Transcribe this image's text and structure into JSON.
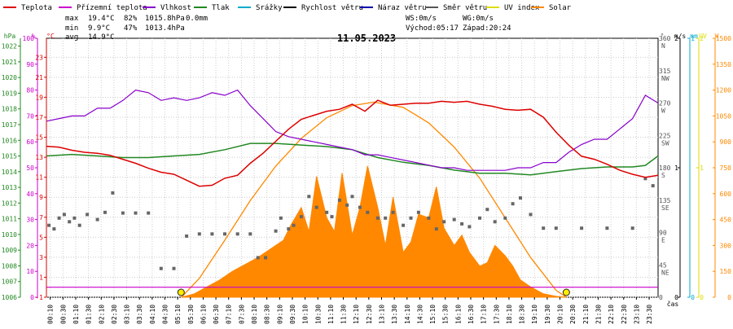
{
  "chart_data": {
    "type": "line",
    "title": "11.05.2023",
    "legend": [
      {
        "name": "Teplota",
        "color": "#dd0000"
      },
      {
        "name": "Přízemní teplota",
        "color": "#cc00cc"
      },
      {
        "name": "Vlhkost",
        "color": "#8800cc"
      },
      {
        "name": "Tlak",
        "color": "#228822"
      },
      {
        "name": "Srážky",
        "color": "#00aacc"
      },
      {
        "name": "Rychlost větru",
        "color": "#000000"
      },
      {
        "name": "Náraz větru",
        "color": "#0000aa"
      },
      {
        "name": "Směr větru",
        "color": "#555555"
      },
      {
        "name": "UV index",
        "color": "#dddd00"
      },
      {
        "name": "Solar",
        "color": "#ff8800"
      }
    ],
    "stats": {
      "max": {
        "label": "max",
        "temp": "19.4°C",
        "hum": "82%",
        "press": "1015.8hPa",
        "rain": "0.0mm"
      },
      "min": {
        "label": "min",
        "temp": "9.9°C",
        "hum": "47%",
        "press": "1013.4hPa"
      },
      "avg": {
        "label": "avg",
        "temp": "14.9°C"
      }
    },
    "info": {
      "ws": "WS:0m/s",
      "wg": "WG:0m/s",
      "sunrise": "Východ:05:17",
      "sunset": "Západ:20:24"
    },
    "x_unit": "čas",
    "x_ticks": [
      "00:10",
      "00:30",
      "01:10",
      "01:30",
      "02:10",
      "02:30",
      "03:10",
      "03:30",
      "04:10",
      "04:30",
      "05:10",
      "05:30",
      "06:10",
      "06:30",
      "07:10",
      "07:30",
      "08:10",
      "08:30",
      "09:10",
      "09:30",
      "10:10",
      "10:30",
      "11:10",
      "11:30",
      "12:10",
      "12:30",
      "13:10",
      "13:30",
      "14:10",
      "14:30",
      "15:10",
      "15:30",
      "16:10",
      "16:30",
      "17:10",
      "17:30",
      "18:10",
      "18:30",
      "19:10",
      "19:30",
      "20:10",
      "20:30",
      "21:10",
      "21:30",
      "22:10",
      "22:30",
      "23:10",
      "23:30"
    ],
    "axes": {
      "pressure": {
        "unit": "hPa",
        "ticks": [
          "1022",
          "1021",
          "1020",
          "1019",
          "1018",
          "1017",
          "1016",
          "1015",
          "1014",
          "1013",
          "1012",
          "1011",
          "1010",
          "1009",
          "1008",
          "1007",
          "1006"
        ],
        "range": [
          1006,
          1022.5
        ]
      },
      "humidity": {
        "unit": "%",
        "ticks": [
          "100",
          "90",
          "80",
          "70",
          "60",
          "50",
          "40",
          "30",
          "20",
          "10",
          "0"
        ],
        "range": [
          0,
          100
        ]
      },
      "temperature": {
        "unit": "°C",
        "ticks": [
          "23",
          "21",
          "19",
          "17",
          "15",
          "13",
          "11",
          "9",
          "7",
          "5",
          "3",
          "1",
          "-1"
        ],
        "range": [
          -1,
          24.9
        ]
      },
      "wind_dir": {
        "unit": "°",
        "ticks": [
          "360",
          "315",
          "270",
          "225",
          "180",
          "135",
          "90",
          "45",
          "0"
        ],
        "compass": [
          "N",
          "NW",
          "W",
          "SW",
          "S",
          "SE",
          "E",
          "NE",
          ""
        ],
        "range": [
          0,
          360
        ]
      },
      "wind_speed": {
        "unit": "m/s",
        "ticks": [
          "2",
          "1",
          "0"
        ],
        "range": [
          0,
          2
        ]
      },
      "rain": {
        "unit": "mm",
        "ticks": [
          "1",
          "0"
        ],
        "range": [
          0,
          1
        ]
      },
      "uv": {
        "unit": "UV",
        "ticks": [
          "2",
          "1",
          "0"
        ],
        "range": [
          0,
          2
        ]
      },
      "solar": {
        "unit": "W",
        "ticks": [
          "1500",
          "1350",
          "1200",
          "1050",
          "900",
          "750",
          "600",
          "450",
          "300",
          "150",
          "0"
        ],
        "range": [
          0,
          1500
        ]
      }
    },
    "series": [
      {
        "name": "Teplota",
        "axis": "temperature",
        "x": [
          0,
          0.5,
          1,
          1.5,
          2,
          2.5,
          3,
          3.5,
          4,
          4.5,
          5,
          5.5,
          6,
          6.5,
          7,
          7.5,
          8,
          8.5,
          9,
          9.5,
          10,
          10.5,
          11,
          11.5,
          12,
          12.5,
          13,
          13.5,
          14,
          14.5,
          15,
          15.5,
          16,
          16.5,
          17,
          17.5,
          18,
          18.5,
          19,
          19.5,
          20,
          20.5,
          21,
          21.5,
          22,
          22.5,
          23,
          23.5,
          24
        ],
        "y": [
          14.1,
          14.0,
          13.7,
          13.5,
          13.4,
          13.2,
          12.8,
          12.4,
          11.9,
          11.5,
          11.3,
          10.7,
          10.1,
          10.2,
          10.9,
          11.2,
          12.4,
          13.4,
          14.6,
          15.8,
          16.8,
          17.2,
          17.6,
          17.8,
          18.3,
          17.6,
          18.7,
          18.2,
          18.3,
          18.4,
          18.4,
          18.6,
          18.5,
          18.6,
          18.3,
          18.1,
          17.8,
          17.7,
          17.8,
          17.0,
          15.5,
          14.2,
          13.1,
          12.8,
          12.3,
          11.7,
          11.3,
          11.0,
          11.2
        ]
      },
      {
        "name": "Přízemní teplota",
        "axis": "temperature",
        "x": [
          0,
          24
        ],
        "y": [
          0,
          0
        ]
      },
      {
        "name": "Vlhkost",
        "axis": "humidity",
        "x": [
          0,
          0.5,
          1,
          1.5,
          2,
          2.5,
          3,
          3.5,
          4,
          4.5,
          5,
          5.5,
          6,
          6.5,
          7,
          7.5,
          8,
          8.5,
          9,
          9.5,
          10,
          10.5,
          11,
          11.5,
          12,
          12.5,
          13,
          13.5,
          14,
          14.5,
          15,
          15.5,
          16,
          16.5,
          17,
          17.5,
          18,
          18.5,
          19,
          19.5,
          20,
          20.5,
          21,
          21.5,
          22,
          22.5,
          23,
          23.5,
          24
        ],
        "y": [
          68,
          69,
          70,
          70,
          73,
          73,
          76,
          80,
          79,
          76,
          77,
          76,
          77,
          79,
          78,
          80,
          74,
          69,
          64,
          62,
          61,
          60,
          59,
          58,
          57,
          55,
          55,
          54,
          53,
          52,
          51,
          50,
          50,
          49,
          49,
          49,
          49,
          50,
          50,
          52,
          52,
          56,
          59,
          61,
          61,
          65,
          69,
          78,
          75
        ]
      },
      {
        "name": "Tlak",
        "axis": "pressure",
        "x": [
          0,
          1,
          2,
          3,
          4,
          5,
          6,
          7,
          8,
          9,
          10,
          11,
          12,
          13,
          14,
          15,
          16,
          17,
          18,
          19,
          20,
          21,
          22,
          23,
          23.5,
          24
        ],
        "y": [
          1015.0,
          1015.1,
          1015.0,
          1014.9,
          1014.9,
          1015.0,
          1015.1,
          1015.4,
          1015.8,
          1015.8,
          1015.7,
          1015.6,
          1015.4,
          1014.9,
          1014.6,
          1014.4,
          1014.1,
          1013.9,
          1013.9,
          1013.8,
          1014.0,
          1014.2,
          1014.3,
          1014.3,
          1014.4,
          1015.0
        ]
      },
      {
        "name": "Rychlost větru",
        "axis": "wind_speed",
        "x": [
          0,
          24
        ],
        "y": [
          0,
          0
        ]
      },
      {
        "name": "Náraz větru",
        "axis": "wind_speed",
        "x": [
          0,
          24
        ],
        "y": [
          0,
          0
        ]
      },
      {
        "name": "Srážky",
        "axis": "rain",
        "x": [
          0,
          24
        ],
        "y": [
          0,
          0
        ]
      },
      {
        "name": "Směr větru",
        "axis": "wind_dir",
        "x": [
          0.1,
          0.3,
          0.5,
          0.7,
          0.9,
          1.1,
          1.3,
          1.6,
          2.0,
          2.3,
          2.6,
          3.0,
          3.5,
          4.0,
          4.5,
          5.0,
          5.5,
          6.0,
          6.5,
          7.0,
          7.5,
          8.0,
          8.3,
          8.6,
          9.0,
          9.2,
          9.5,
          9.7,
          10.0,
          10.3,
          10.6,
          11.0,
          11.2,
          11.5,
          11.8,
          12.0,
          12.3,
          12.6,
          13.0,
          13.3,
          13.6,
          14.0,
          14.3,
          14.6,
          15.0,
          15.3,
          15.6,
          16.0,
          16.3,
          16.6,
          17.0,
          17.3,
          17.6,
          18.0,
          18.3,
          18.6,
          19.0,
          19.5,
          20.0,
          21.0,
          22.0,
          23.0,
          23.5,
          23.8
        ],
        "y": [
          100,
          95,
          110,
          115,
          105,
          110,
          100,
          115,
          108,
          118,
          145,
          117,
          117,
          117,
          40,
          40,
          85,
          88,
          88,
          88,
          88,
          88,
          55,
          55,
          92,
          110,
          95,
          100,
          112,
          140,
          125,
          118,
          112,
          135,
          128,
          140,
          125,
          118,
          110,
          110,
          118,
          100,
          110,
          118,
          110,
          95,
          105,
          108,
          102,
          98,
          110,
          122,
          105,
          110,
          130,
          138,
          115,
          96,
          96,
          96,
          96,
          96,
          165,
          155
        ]
      },
      {
        "name": "UV index",
        "axis": "uv",
        "x": [
          0,
          24
        ],
        "y": [
          0,
          0
        ]
      },
      {
        "name": "Solar",
        "axis": "solar",
        "x": [
          5.3,
          5.8,
          6.3,
          6.8,
          7.3,
          7.8,
          8.3,
          8.8,
          9.3,
          9.6,
          10.0,
          10.3,
          10.6,
          11.0,
          11.3,
          11.6,
          12.0,
          12.3,
          12.6,
          13.0,
          13.3,
          13.6,
          14.0,
          14.3,
          14.6,
          15.0,
          15.3,
          15.6,
          16.0,
          16.3,
          16.6,
          17.0,
          17.3,
          17.6,
          18.0,
          18.3,
          18.6,
          19.0,
          19.5,
          20.0,
          20.4
        ],
        "y": [
          0,
          20,
          60,
          100,
          150,
          190,
          230,
          280,
          330,
          420,
          520,
          380,
          700,
          460,
          380,
          720,
          360,
          520,
          760,
          520,
          300,
          580,
          260,
          320,
          480,
          460,
          640,
          400,
          300,
          360,
          260,
          180,
          200,
          300,
          240,
          180,
          100,
          60,
          20,
          5,
          0
        ]
      },
      {
        "name": "Solar (theoretical)",
        "axis": "solar",
        "x": [
          5.3,
          6,
          7,
          8,
          9,
          10,
          11,
          12,
          12.85,
          14,
          15,
          16,
          17,
          18,
          19,
          20,
          20.4
        ],
        "y": [
          0,
          110,
          330,
          560,
          760,
          920,
          1040,
          1110,
          1130,
          1100,
          1010,
          870,
          690,
          460,
          230,
          40,
          0
        ]
      }
    ]
  }
}
